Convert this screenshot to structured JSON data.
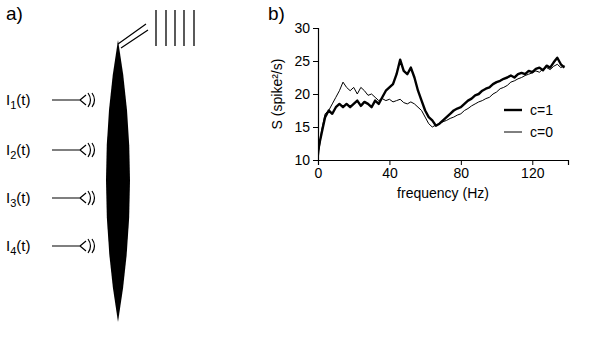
{
  "panels": [
    "a)",
    "b)"
  ],
  "diagram": {
    "inputs": [
      {
        "symbol": "I",
        "index": "1",
        "arg": "(t)"
      },
      {
        "symbol": "I",
        "index": "2",
        "arg": "(t)"
      },
      {
        "symbol": "I",
        "index": "3",
        "arg": "(t)"
      },
      {
        "symbol": "I",
        "index": "4",
        "arg": "(t)"
      }
    ]
  },
  "chart_data": {
    "type": "line",
    "x_label": "frequency (Hz)",
    "y_label": "S (spike²/s)",
    "x": [
      0,
      2,
      4,
      6,
      8,
      10,
      12,
      14,
      16,
      18,
      20,
      22,
      24,
      26,
      28,
      30,
      32,
      34,
      36,
      38,
      40,
      42,
      44,
      46,
      48,
      50,
      52,
      54,
      56,
      58,
      60,
      62,
      64,
      66,
      68,
      70,
      72,
      74,
      76,
      78,
      80,
      82,
      84,
      86,
      88,
      90,
      92,
      94,
      96,
      98,
      100,
      102,
      104,
      106,
      108,
      110,
      112,
      114,
      116,
      118,
      120,
      122,
      124,
      126,
      128,
      130,
      132,
      134,
      136,
      138
    ],
    "series": [
      {
        "name": "c=1",
        "color": "#000000",
        "line_style": "thick",
        "values": [
          11.5,
          14,
          16.5,
          17.5,
          17,
          18,
          18.5,
          18,
          18.5,
          18,
          18.5,
          19,
          18.2,
          18.8,
          18.5,
          18,
          19,
          18.5,
          19.5,
          20.5,
          21,
          21.5,
          23,
          25.2,
          23.5,
          23,
          24,
          22.5,
          20.5,
          19,
          17.5,
          16.5,
          16,
          15.2,
          15.5,
          16,
          16.5,
          17,
          17.5,
          17.8,
          18,
          18.5,
          19,
          19.3,
          19.8,
          20,
          20.5,
          20.8,
          21,
          21.5,
          21.8,
          22,
          22.3,
          22.5,
          22.8,
          22.5,
          23,
          23.2,
          23,
          23.5,
          23.3,
          23.8,
          24,
          23.6,
          24.3,
          24,
          24.8,
          25.5,
          24.5,
          24
        ]
      },
      {
        "name": "c=0",
        "color": "#000000",
        "line_style": "thin",
        "values": [
          10,
          14.5,
          17,
          17.5,
          18.5,
          19.5,
          20.5,
          21.8,
          21,
          20.5,
          21,
          20,
          21,
          20.5,
          19.8,
          20,
          19.5,
          19,
          19.3,
          19,
          19.2,
          18.8,
          19,
          19.2,
          18.7,
          18.5,
          18.8,
          18.5,
          18,
          17.5,
          16.5,
          15.5,
          15,
          15.3,
          15.5,
          15.8,
          16,
          16.3,
          16.5,
          16.8,
          17,
          17.5,
          17.8,
          18.2,
          18.5,
          18.8,
          19,
          19.3,
          19.5,
          20,
          20.3,
          20.8,
          21,
          21.3,
          21.8,
          22,
          22.3,
          22.5,
          22.8,
          23,
          23.2,
          23.5,
          23.3,
          23.8,
          24,
          23.7,
          24.2,
          24.5,
          24,
          24.3
        ]
      }
    ],
    "xlim": [
      0,
      140
    ],
    "xticks": [
      0,
      40,
      80,
      120
    ],
    "ylim": [
      10,
      30
    ],
    "yticks": [
      10,
      15,
      20,
      25,
      30
    ],
    "grid": false,
    "legend": "lower right"
  }
}
